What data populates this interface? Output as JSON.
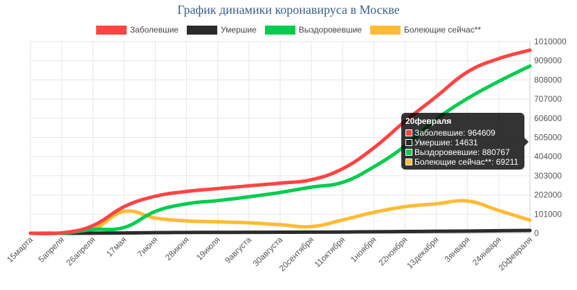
{
  "chart_data": {
    "type": "line",
    "title": "График динамики коронавируса в Москве",
    "x": [
      "15марта",
      "5апреля",
      "26апреля",
      "17мая",
      "7июня",
      "28июня",
      "19июля",
      "9августа",
      "30августа",
      "20сентября",
      "11октября",
      "1ноября",
      "22ноября",
      "13декабря",
      "3января",
      "24января",
      "20февраля"
    ],
    "ylim": [
      0,
      1010000
    ],
    "yticks": [
      0,
      101000,
      202000,
      303000,
      404000,
      505000,
      606000,
      707000,
      808000,
      909000,
      1010000
    ],
    "ytick_labels": [
      "0",
      "101000",
      "202000",
      "303000",
      "404000",
      "505000",
      "606000",
      "707000",
      "808000",
      "909000",
      "1010000"
    ],
    "grid": true,
    "legend_position": "top",
    "series": [
      {
        "name": "Заболевшие",
        "color": "#ff4444",
        "values": [
          0,
          2000,
          40000,
          140000,
          195000,
          220000,
          235000,
          250000,
          264000,
          282000,
          340000,
          450000,
          590000,
          720000,
          850000,
          920000,
          964609
        ]
      },
      {
        "name": "Умершие",
        "color": "#2b2b2b",
        "values": [
          0,
          10,
          300,
          1500,
          3200,
          4300,
          4600,
          4900,
          5300,
          5700,
          6500,
          7800,
          9000,
          10500,
          11600,
          13400,
          14631
        ]
      },
      {
        "name": "Выздоровевшие",
        "color": "#00cc4e",
        "values": [
          0,
          300,
          20000,
          30000,
          115000,
          155000,
          172000,
          192000,
          215000,
          243000,
          268000,
          350000,
          460000,
          600000,
          710000,
          800000,
          880767
        ]
      },
      {
        "name": "Болеющие сейчас**",
        "color": "#ffbb33",
        "values": [
          0,
          1700,
          20000,
          115000,
          80000,
          65000,
          60000,
          55000,
          45000,
          35000,
          70000,
          110000,
          140000,
          155000,
          170000,
          120000,
          69211
        ]
      }
    ]
  },
  "tooltip": {
    "title": "20февраля",
    "rows": [
      {
        "label": "Заболевшие: 964609",
        "color": "#ff4444"
      },
      {
        "label": "Умершие: 14631",
        "color": "#2b2b2b"
      },
      {
        "label": "Выздоровевшие: 880767",
        "color": "#00cc4e"
      },
      {
        "label": "Болеющие сейчас**: 69211",
        "color": "#ffbb33"
      }
    ]
  }
}
